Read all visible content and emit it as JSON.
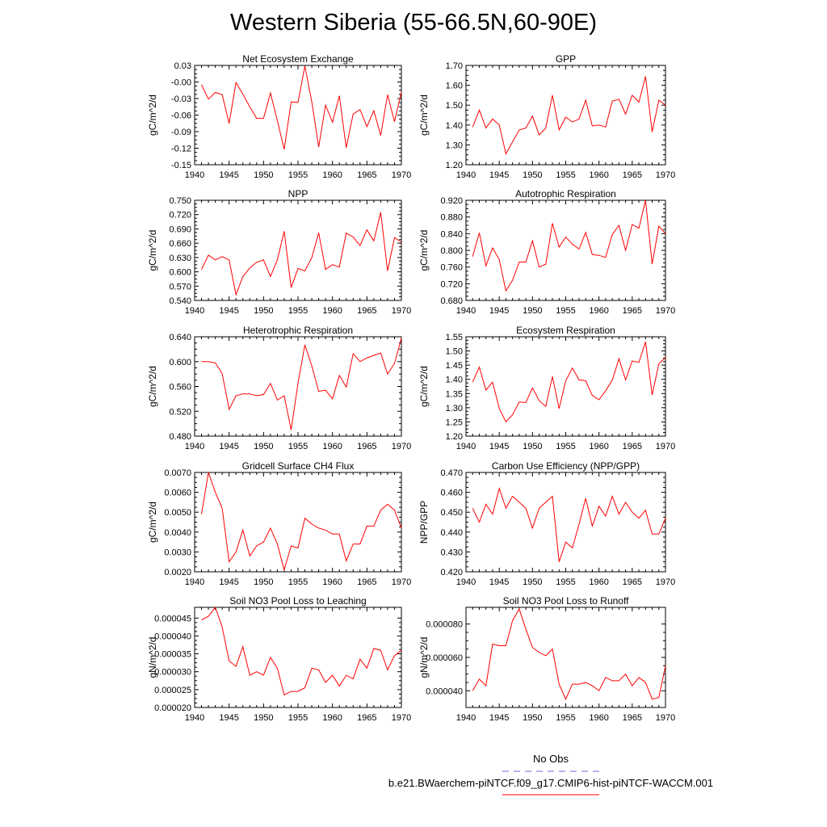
{
  "title": "Western Siberia (55-66.5N,60-90E)",
  "legend": [
    {
      "label": "No Obs",
      "color": "#6a6adf",
      "style": "dashed"
    },
    {
      "label": "b.e21.BWaerchem-piNTCF.f09_g17.CMIP6-hist-piNTCF-WACCM.001",
      "color": "#ff0000",
      "style": "solid"
    }
  ],
  "chart_data": [
    {
      "type": "line",
      "title": "Net Ecosystem Exchange",
      "ylabel": "gC/m^2/d",
      "xlim": [
        1940,
        1970
      ],
      "xticks": [
        "1940",
        "1945",
        "1950",
        "1955",
        "1960",
        "1965",
        "1970"
      ],
      "ylim": [
        -0.15,
        0.03
      ],
      "yticks": [
        "0.03",
        "-0.00",
        "-0.03",
        "-0.06",
        "-0.09",
        "-0.12",
        "-0.15"
      ],
      "series": [
        {
          "color": "#ff0000",
          "x": [
            1941,
            1942,
            1943,
            1944,
            1945,
            1946,
            1947,
            1948,
            1949,
            1950,
            1951,
            1952,
            1953,
            1954,
            1955,
            1956,
            1957,
            1958,
            1959,
            1960,
            1961,
            1962,
            1963,
            1964,
            1965,
            1966,
            1967,
            1968,
            1969,
            1970
          ],
          "values": [
            -0.005,
            -0.031,
            -0.019,
            -0.023,
            -0.075,
            -0.001,
            -0.022,
            -0.045,
            -0.066,
            -0.066,
            -0.02,
            -0.07,
            -0.122,
            -0.036,
            -0.037,
            0.029,
            -0.036,
            -0.118,
            -0.042,
            -0.073,
            -0.025,
            -0.119,
            -0.058,
            -0.05,
            -0.081,
            -0.052,
            -0.097,
            -0.023,
            -0.072,
            -0.018
          ]
        }
      ]
    },
    {
      "type": "line",
      "title": "GPP",
      "ylabel": "gC/m^2/d",
      "xlim": [
        1940,
        1970
      ],
      "xticks": [
        "1940",
        "1945",
        "1950",
        "1955",
        "1960",
        "1965",
        "1970"
      ],
      "ylim": [
        1.2,
        1.7
      ],
      "yticks": [
        "1.70",
        "1.60",
        "1.50",
        "1.40",
        "1.30",
        "1.20"
      ],
      "series": [
        {
          "color": "#ff0000",
          "x": [
            1941,
            1942,
            1943,
            1944,
            1945,
            1946,
            1947,
            1948,
            1949,
            1950,
            1951,
            1952,
            1953,
            1954,
            1955,
            1956,
            1957,
            1958,
            1959,
            1960,
            1961,
            1962,
            1963,
            1964,
            1965,
            1966,
            1967,
            1968,
            1969,
            1970
          ],
          "values": [
            1.39,
            1.475,
            1.385,
            1.43,
            1.4,
            1.255,
            1.315,
            1.375,
            1.385,
            1.445,
            1.35,
            1.385,
            1.55,
            1.375,
            1.44,
            1.415,
            1.43,
            1.525,
            1.395,
            1.4,
            1.39,
            1.52,
            1.53,
            1.455,
            1.55,
            1.515,
            1.645,
            1.365,
            1.525,
            1.5
          ]
        }
      ]
    },
    {
      "type": "line",
      "title": "NPP",
      "ylabel": "gC/m^2/d",
      "xlim": [
        1940,
        1970
      ],
      "xticks": [
        "1940",
        "1945",
        "1950",
        "1955",
        "1960",
        "1965",
        "1970"
      ],
      "ylim": [
        0.54,
        0.75
      ],
      "yticks": [
        "0.750",
        "0.720",
        "0.690",
        "0.660",
        "0.630",
        "0.600",
        "0.570",
        "0.540"
      ],
      "series": [
        {
          "color": "#ff0000",
          "x": [
            1941,
            1942,
            1943,
            1944,
            1945,
            1946,
            1947,
            1948,
            1949,
            1950,
            1951,
            1952,
            1953,
            1954,
            1955,
            1956,
            1957,
            1958,
            1959,
            1960,
            1961,
            1962,
            1963,
            1964,
            1965,
            1966,
            1967,
            1968,
            1969,
            1970
          ],
          "values": [
            0.605,
            0.635,
            0.625,
            0.632,
            0.625,
            0.552,
            0.59,
            0.608,
            0.62,
            0.625,
            0.59,
            0.625,
            0.685,
            0.567,
            0.607,
            0.602,
            0.63,
            0.682,
            0.605,
            0.615,
            0.61,
            0.681,
            0.673,
            0.655,
            0.688,
            0.665,
            0.725,
            0.602,
            0.672,
            0.662
          ]
        }
      ]
    },
    {
      "type": "line",
      "title": "Autotrophic Respiration",
      "ylabel": "gC/m^2/d",
      "xlim": [
        1940,
        1970
      ],
      "xticks": [
        "1940",
        "1945",
        "1950",
        "1955",
        "1960",
        "1965",
        "1970"
      ],
      "ylim": [
        0.68,
        0.92
      ],
      "yticks": [
        "0.920",
        "0.880",
        "0.840",
        "0.800",
        "0.760",
        "0.720",
        "0.680"
      ],
      "series": [
        {
          "color": "#ff0000",
          "x": [
            1941,
            1942,
            1943,
            1944,
            1945,
            1946,
            1947,
            1948,
            1949,
            1950,
            1951,
            1952,
            1953,
            1954,
            1955,
            1956,
            1957,
            1958,
            1959,
            1960,
            1961,
            1962,
            1963,
            1964,
            1965,
            1966,
            1967,
            1968,
            1969,
            1970
          ],
          "values": [
            0.785,
            0.842,
            0.763,
            0.806,
            0.778,
            0.703,
            0.728,
            0.772,
            0.772,
            0.823,
            0.76,
            0.767,
            0.865,
            0.808,
            0.832,
            0.815,
            0.803,
            0.843,
            0.79,
            0.788,
            0.783,
            0.838,
            0.86,
            0.8,
            0.862,
            0.853,
            0.92,
            0.767,
            0.858,
            0.84
          ]
        }
      ]
    },
    {
      "type": "line",
      "title": "Heterotrophic Respiration",
      "ylabel": "gC/m^2/d",
      "xlim": [
        1940,
        1970
      ],
      "xticks": [
        "1940",
        "1945",
        "1950",
        "1955",
        "1960",
        "1965",
        "1970"
      ],
      "ylim": [
        0.48,
        0.64
      ],
      "yticks": [
        "0.640",
        "0.600",
        "0.560",
        "0.520",
        "0.480"
      ],
      "series": [
        {
          "color": "#ff0000",
          "x": [
            1941,
            1942,
            1943,
            1944,
            1945,
            1946,
            1947,
            1948,
            1949,
            1950,
            1951,
            1952,
            1953,
            1954,
            1955,
            1956,
            1957,
            1958,
            1959,
            1960,
            1961,
            1962,
            1963,
            1964,
            1965,
            1966,
            1967,
            1968,
            1969,
            1970
          ],
          "values": [
            0.6,
            0.6,
            0.598,
            0.581,
            0.523,
            0.545,
            0.548,
            0.548,
            0.545,
            0.547,
            0.565,
            0.538,
            0.545,
            0.49,
            0.565,
            0.627,
            0.593,
            0.552,
            0.554,
            0.54,
            0.578,
            0.559,
            0.613,
            0.6,
            0.606,
            0.61,
            0.614,
            0.58,
            0.597,
            0.638
          ]
        }
      ]
    },
    {
      "type": "line",
      "title": "Ecosystem Respiration",
      "ylabel": "gC/m^2/d",
      "xlim": [
        1940,
        1970
      ],
      "xticks": [
        "1940",
        "1945",
        "1950",
        "1955",
        "1960",
        "1965",
        "1970"
      ],
      "ylim": [
        1.2,
        1.55
      ],
      "yticks": [
        "1.55",
        "1.50",
        "1.45",
        "1.40",
        "1.35",
        "1.30",
        "1.25",
        "1.20"
      ],
      "series": [
        {
          "color": "#ff0000",
          "x": [
            1941,
            1942,
            1943,
            1944,
            1945,
            1946,
            1947,
            1948,
            1949,
            1950,
            1951,
            1952,
            1953,
            1954,
            1955,
            1956,
            1957,
            1958,
            1959,
            1960,
            1961,
            1962,
            1963,
            1964,
            1965,
            1966,
            1967,
            1968,
            1969,
            1970
          ],
          "values": [
            1.39,
            1.443,
            1.362,
            1.39,
            1.298,
            1.25,
            1.275,
            1.32,
            1.318,
            1.37,
            1.325,
            1.305,
            1.41,
            1.297,
            1.395,
            1.44,
            1.398,
            1.395,
            1.343,
            1.328,
            1.36,
            1.397,
            1.473,
            1.398,
            1.465,
            1.46,
            1.532,
            1.345,
            1.455,
            1.477
          ]
        }
      ]
    },
    {
      "type": "line",
      "title": "Gridcell Surface CH4 Flux",
      "ylabel": "gC/m^2/d",
      "xlim": [
        1940,
        1970
      ],
      "xticks": [
        "1940",
        "1945",
        "1950",
        "1955",
        "1960",
        "1965",
        "1970"
      ],
      "ylim": [
        0.002,
        0.007
      ],
      "yticks": [
        "0.0070",
        "0.0060",
        "0.0050",
        "0.0040",
        "0.0030",
        "0.0020"
      ],
      "series": [
        {
          "color": "#ff0000",
          "x": [
            1941,
            1942,
            1943,
            1944,
            1945,
            1946,
            1947,
            1948,
            1949,
            1950,
            1951,
            1952,
            1953,
            1954,
            1955,
            1956,
            1957,
            1958,
            1959,
            1960,
            1961,
            1962,
            1963,
            1964,
            1965,
            1966,
            1967,
            1968,
            1969,
            1970
          ],
          "values": [
            0.0049,
            0.007,
            0.006,
            0.0052,
            0.0025,
            0.003,
            0.0041,
            0.0028,
            0.0033,
            0.0035,
            0.0042,
            0.0034,
            0.0021,
            0.0033,
            0.0032,
            0.0047,
            0.0044,
            0.0042,
            0.0041,
            0.0039,
            0.0039,
            0.00255,
            0.0034,
            0.0034,
            0.0043,
            0.0043,
            0.0051,
            0.0054,
            0.0051,
            0.0042
          ]
        }
      ]
    },
    {
      "type": "line",
      "title": "Carbon Use Efficiency (NPP/GPP)",
      "ylabel": "NPP/GPP",
      "xlim": [
        1940,
        1970
      ],
      "xticks": [
        "1940",
        "1945",
        "1950",
        "1955",
        "1960",
        "1965",
        "1970"
      ],
      "ylim": [
        0.42,
        0.47
      ],
      "yticks": [
        "0.470",
        "0.460",
        "0.450",
        "0.440",
        "0.430",
        "0.420"
      ],
      "series": [
        {
          "color": "#ff0000",
          "x": [
            1941,
            1942,
            1943,
            1944,
            1945,
            1946,
            1947,
            1948,
            1949,
            1950,
            1951,
            1952,
            1953,
            1954,
            1955,
            1956,
            1957,
            1958,
            1959,
            1960,
            1961,
            1962,
            1963,
            1964,
            1965,
            1966,
            1967,
            1968,
            1969,
            1970
          ],
          "values": [
            0.452,
            0.445,
            0.454,
            0.449,
            0.462,
            0.452,
            0.458,
            0.455,
            0.452,
            0.442,
            0.452,
            0.455,
            0.458,
            0.425,
            0.435,
            0.432,
            0.444,
            0.457,
            0.443,
            0.453,
            0.448,
            0.458,
            0.449,
            0.455,
            0.45,
            0.447,
            0.451,
            0.439,
            0.439,
            0.447
          ]
        }
      ]
    },
    {
      "type": "line",
      "title": "Soil NO3 Pool Loss to Leaching",
      "ylabel": "gN/m^2/d",
      "xlim": [
        1940,
        1970
      ],
      "xticks": [
        "1940",
        "1945",
        "1950",
        "1955",
        "1960",
        "1965",
        "1970"
      ],
      "ylim": [
        2e-05,
        4.8e-05
      ],
      "yticks": [
        "0.000045",
        "0.000040",
        "0.000035",
        "0.000030",
        "0.000025",
        "0.000020"
      ],
      "series": [
        {
          "color": "#ff0000",
          "x": [
            1941,
            1942,
            1943,
            1944,
            1945,
            1946,
            1947,
            1948,
            1949,
            1950,
            1951,
            1952,
            1953,
            1954,
            1955,
            1956,
            1957,
            1958,
            1959,
            1960,
            1961,
            1962,
            1963,
            1964,
            1965,
            1966,
            1967,
            1968,
            1969,
            1970
          ],
          "values": [
            4.45e-05,
            4.55e-05,
            4.8e-05,
            4.25e-05,
            3.3e-05,
            3.15e-05,
            3.7e-05,
            2.9e-05,
            3e-05,
            2.9e-05,
            3.4e-05,
            3.1e-05,
            2.35e-05,
            2.45e-05,
            2.45e-05,
            2.55e-05,
            3.1e-05,
            3.05e-05,
            2.7e-05,
            2.9e-05,
            2.6e-05,
            2.9e-05,
            2.8e-05,
            3.35e-05,
            3.1e-05,
            3.65e-05,
            3.6e-05,
            3.05e-05,
            3.45e-05,
            3.6e-05
          ]
        }
      ]
    },
    {
      "type": "line",
      "title": "Soil NO3 Pool Loss to Runoff",
      "ylabel": "gN/m^2/d",
      "xlim": [
        1940,
        1970
      ],
      "xticks": [
        "1940",
        "1945",
        "1950",
        "1955",
        "1960",
        "1965",
        "1970"
      ],
      "ylim": [
        3e-05,
        9e-05
      ],
      "yticks": [
        "0.000080",
        "0.000060",
        "0.000040"
      ],
      "series": [
        {
          "color": "#ff0000",
          "x": [
            1941,
            1942,
            1943,
            1944,
            1945,
            1946,
            1947,
            1948,
            1949,
            1950,
            1951,
            1952,
            1953,
            1954,
            1955,
            1956,
            1957,
            1958,
            1959,
            1960,
            1961,
            1962,
            1963,
            1964,
            1965,
            1966,
            1967,
            1968,
            1969,
            1970
          ],
          "values": [
            4e-05,
            4.7e-05,
            4.3e-05,
            6.8e-05,
            6.7e-05,
            6.7e-05,
            8.2e-05,
            8.9e-05,
            7.7e-05,
            6.6e-05,
            6.3e-05,
            6.1e-05,
            6.5e-05,
            4.4e-05,
            3.5e-05,
            4.4e-05,
            4.4e-05,
            4.5e-05,
            4.3e-05,
            4e-05,
            4.8e-05,
            4.6e-05,
            4.6e-05,
            5e-05,
            4.3e-05,
            4.8e-05,
            4.5e-05,
            3.5e-05,
            3.6e-05,
            5.5e-05
          ]
        }
      ]
    }
  ]
}
